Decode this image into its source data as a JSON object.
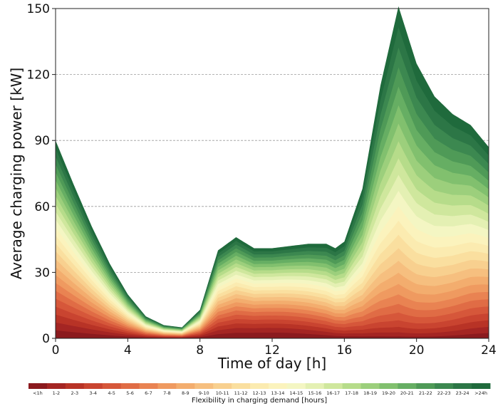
{
  "chart_data": {
    "type": "area",
    "stacked": true,
    "xlabel": "Time of day [h]",
    "ylabel": "Average charging power [kW]",
    "xlim": [
      0,
      24
    ],
    "ylim": [
      0,
      150
    ],
    "xticks": [
      0,
      4,
      8,
      12,
      16,
      20,
      24
    ],
    "yticks": [
      0,
      30,
      60,
      90,
      120,
      150
    ],
    "grid": "horizontal dashed",
    "total_profile": {
      "x": [
        0,
        1,
        2,
        3,
        4,
        5,
        6,
        7,
        8,
        9,
        10,
        11,
        12,
        13,
        14,
        15,
        15.5,
        16,
        17,
        18,
        19,
        20,
        21,
        22,
        23,
        24
      ],
      "y": [
        90,
        70,
        51,
        34,
        20,
        10,
        6,
        5,
        13,
        40,
        46,
        41,
        41,
        42,
        43,
        43,
        41,
        44,
        68,
        115,
        151,
        125,
        110,
        102,
        97,
        87
      ]
    },
    "colorbar": {
      "label": "Flexibility in charging demand [hours]",
      "orientation": "horizontal",
      "categories": [
        "<1h",
        "1-2",
        "2-3",
        "3-4",
        "4-5",
        "5-6",
        "6-7",
        "7-8",
        "8-9",
        "9-10",
        "10-11",
        "11-12",
        "12-13",
        "13-14",
        "14-15",
        "15-16",
        "16-17",
        "17-18",
        "18-19",
        "19-20",
        "20-21",
        "21-22",
        "22-23",
        "23-24",
        ">24h"
      ],
      "colors": [
        "#8b1a1e",
        "#a42523",
        "#b83326",
        "#c94430",
        "#d6573a",
        "#e06c45",
        "#e98352",
        "#ef9a60",
        "#f3ad6e",
        "#f6bf7f",
        "#f8d08f",
        "#fadf9f",
        "#fbebb0",
        "#fbf3bd",
        "#f4f6c3",
        "#e4f0b3",
        "#cfe79d",
        "#b6dc8a",
        "#9ccf7c",
        "#81c06e",
        "#66ae63",
        "#4f9a57",
        "#3c8850",
        "#2c7646",
        "#1f6a3c"
      ]
    }
  }
}
